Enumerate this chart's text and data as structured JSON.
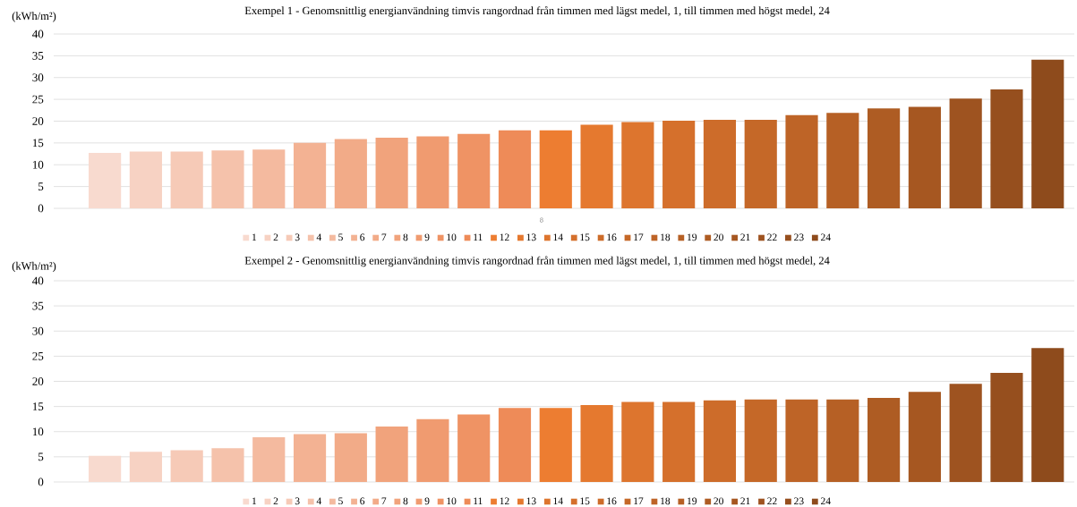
{
  "chart_data": [
    {
      "type": "bar",
      "title": "Exempel 1 - Genomsnittlig energianvändning timvis rangordnad från timmen med lägst medel, 1, till timmen med högst medel, 24",
      "ylabel": "(kWh/m²)",
      "categories": [
        null
      ],
      "ylim": [
        0,
        40
      ],
      "yticks": [
        0,
        5,
        10,
        15,
        20,
        25,
        30,
        35,
        40
      ],
      "grid": "y",
      "legend": "bottom",
      "annotations": [
        "8"
      ],
      "series": [
        {
          "name": "1",
          "color": "#f8dacf",
          "values": [
            12.7
          ]
        },
        {
          "name": "2",
          "color": "#f7d2c3",
          "values": [
            13.0
          ]
        },
        {
          "name": "3",
          "color": "#f6cab7",
          "values": [
            13.0
          ]
        },
        {
          "name": "4",
          "color": "#f5c2ab",
          "values": [
            13.3
          ]
        },
        {
          "name": "5",
          "color": "#f4ba9f",
          "values": [
            13.5
          ]
        },
        {
          "name": "6",
          "color": "#f3b293",
          "values": [
            15.0
          ]
        },
        {
          "name": "7",
          "color": "#f2ab88",
          "values": [
            15.9
          ]
        },
        {
          "name": "8",
          "color": "#f1a37c",
          "values": [
            16.2
          ]
        },
        {
          "name": "9",
          "color": "#f09b70",
          "values": [
            16.5
          ]
        },
        {
          "name": "10",
          "color": "#ef9364",
          "values": [
            17.1
          ]
        },
        {
          "name": "11",
          "color": "#ee8b58",
          "values": [
            17.9
          ]
        },
        {
          "name": "12",
          "color": "#ed7d31",
          "values": [
            17.9
          ]
        },
        {
          "name": "13",
          "color": "#e5792f",
          "values": [
            19.2
          ]
        },
        {
          "name": "14",
          "color": "#dd752e",
          "values": [
            19.8
          ]
        },
        {
          "name": "15",
          "color": "#d5702c",
          "values": [
            20.1
          ]
        },
        {
          "name": "16",
          "color": "#cd6c2a",
          "values": [
            20.3
          ]
        },
        {
          "name": "17",
          "color": "#c56828",
          "values": [
            20.3
          ]
        },
        {
          "name": "18",
          "color": "#be6427",
          "values": [
            21.4
          ]
        },
        {
          "name": "19",
          "color": "#b66025",
          "values": [
            21.9
          ]
        },
        {
          "name": "20",
          "color": "#ae5c23",
          "values": [
            22.9
          ]
        },
        {
          "name": "21",
          "color": "#a65721",
          "values": [
            23.3
          ]
        },
        {
          "name": "22",
          "color": "#9e5320",
          "values": [
            25.2
          ]
        },
        {
          "name": "23",
          "color": "#964f1e",
          "values": [
            27.3
          ]
        },
        {
          "name": "24",
          "color": "#8e4b1c",
          "values": [
            34.1
          ]
        }
      ]
    },
    {
      "type": "bar",
      "title": "Exempel 2 - Genomsnittlig energianvändning timvis rangordnad från timmen med lägst medel, 1, till timmen med högst medel, 24",
      "ylabel": "(kWh/m²)",
      "categories": [
        null
      ],
      "ylim": [
        0,
        40
      ],
      "yticks": [
        0,
        5,
        10,
        15,
        20,
        25,
        30,
        35,
        40
      ],
      "grid": "y",
      "legend": "bottom",
      "series": [
        {
          "name": "1",
          "color": "#f8dacf",
          "values": [
            5.2
          ]
        },
        {
          "name": "2",
          "color": "#f7d2c3",
          "values": [
            6.0
          ]
        },
        {
          "name": "3",
          "color": "#f6cab7",
          "values": [
            6.3
          ]
        },
        {
          "name": "4",
          "color": "#f5c2ab",
          "values": [
            6.7
          ]
        },
        {
          "name": "5",
          "color": "#f4ba9f",
          "values": [
            8.9
          ]
        },
        {
          "name": "6",
          "color": "#f3b293",
          "values": [
            9.5
          ]
        },
        {
          "name": "7",
          "color": "#f2ab88",
          "values": [
            9.7
          ]
        },
        {
          "name": "8",
          "color": "#f1a37c",
          "values": [
            11.0
          ]
        },
        {
          "name": "9",
          "color": "#f09b70",
          "values": [
            12.5
          ]
        },
        {
          "name": "10",
          "color": "#ef9364",
          "values": [
            13.4
          ]
        },
        {
          "name": "11",
          "color": "#ee8b58",
          "values": [
            14.7
          ]
        },
        {
          "name": "12",
          "color": "#ed7d31",
          "values": [
            14.7
          ]
        },
        {
          "name": "13",
          "color": "#e5792f",
          "values": [
            15.3
          ]
        },
        {
          "name": "14",
          "color": "#dd752e",
          "values": [
            15.9
          ]
        },
        {
          "name": "15",
          "color": "#d5702c",
          "values": [
            15.9
          ]
        },
        {
          "name": "16",
          "color": "#cd6c2a",
          "values": [
            16.2
          ]
        },
        {
          "name": "17",
          "color": "#c56828",
          "values": [
            16.4
          ]
        },
        {
          "name": "18",
          "color": "#be6427",
          "values": [
            16.4
          ]
        },
        {
          "name": "19",
          "color": "#b66025",
          "values": [
            16.4
          ]
        },
        {
          "name": "20",
          "color": "#ae5c23",
          "values": [
            16.7
          ]
        },
        {
          "name": "21",
          "color": "#a65721",
          "values": [
            17.9
          ]
        },
        {
          "name": "22",
          "color": "#9e5320",
          "values": [
            19.5
          ]
        },
        {
          "name": "23",
          "color": "#964f1e",
          "values": [
            21.7
          ]
        },
        {
          "name": "24",
          "color": "#8e4b1c",
          "values": [
            26.6
          ]
        }
      ]
    }
  ]
}
